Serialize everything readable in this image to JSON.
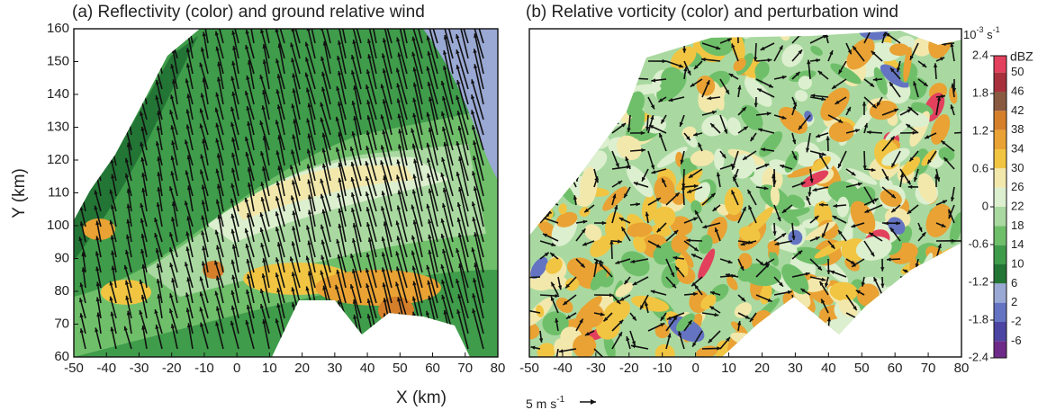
{
  "chart_data": [
    {
      "type": "contour",
      "title": "(a) Reflectivity (color) and ground relative wind",
      "y_label": "Y (km)",
      "xlim": [
        -50,
        80
      ],
      "xticks": [
        -50,
        -40,
        -30,
        -20,
        -10,
        0,
        10,
        20,
        30,
        40,
        50,
        60,
        70,
        80
      ],
      "ylim": [
        60,
        160
      ],
      "yticks": [
        60,
        70,
        80,
        90,
        100,
        110,
        120,
        130,
        140,
        150,
        160
      ]
    },
    {
      "type": "contour",
      "title": "(b) Relative vorticity (color) and perturbation wind",
      "xlim": [
        -50,
        80
      ],
      "xticks": [
        -50,
        -40,
        -30,
        -20,
        -10,
        0,
        10,
        20,
        30,
        40,
        50,
        60,
        70,
        80
      ],
      "ylim": [
        60,
        160
      ]
    }
  ],
  "x_label": "X (km)",
  "scale_arrow": {
    "text": "5 m s",
    "exp": "-1"
  },
  "colorbar": {
    "title": "10",
    "title_exp": "-3",
    "title_unit": " s",
    "title_unit_exp": "-1",
    "vort_lim": [
      -2.4,
      2.4
    ],
    "vort_ticks": [
      2.4,
      1.8,
      1.2,
      0.6,
      0,
      -0.6,
      -1.2,
      -1.8,
      -2.4
    ],
    "dbz_label": "dBZ",
    "dbz_lim": [
      -9.5,
      53.5
    ],
    "dbz_ticks": [
      50,
      46,
      42,
      38,
      34,
      30,
      26,
      22,
      18,
      14,
      10,
      6,
      2,
      -2,
      -6
    ],
    "colors": [
      "#e2405c",
      "#a8303c",
      "#8a5a40",
      "#d67f2a",
      "#e9a233",
      "#f1c542",
      "#f3e8ac",
      "#dcefcf",
      "#a9d9a0",
      "#6fbf6a",
      "#3f9c4a",
      "#237535",
      "#9aa8d4",
      "#6474c2",
      "#4c44a2",
      "#6e2a88"
    ]
  }
}
